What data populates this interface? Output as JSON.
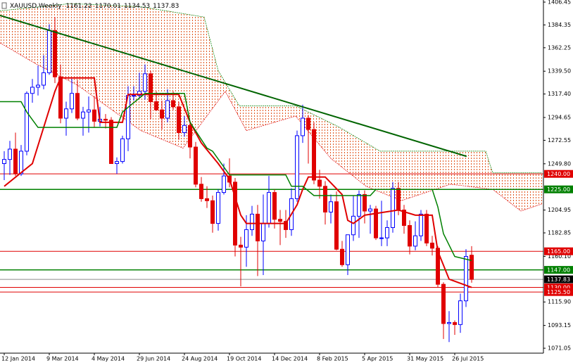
{
  "chart_data": {
    "type": "candlestick",
    "header": {
      "symbol": "XAUUSD,Weekly",
      "open": "1161.22",
      "high": "1170.01",
      "low": "1134.53",
      "close": "1137.83"
    },
    "categories": [
      "12 Jan 2014",
      null,
      null,
      null,
      null,
      null,
      null,
      null,
      "9 Mar 2014",
      null,
      null,
      null,
      null,
      null,
      null,
      null,
      "4 May 2014",
      null,
      null,
      null,
      null,
      null,
      null,
      null,
      "29 Jun 2014",
      null,
      null,
      null,
      null,
      null,
      null,
      null,
      "24 Aug 2014",
      null,
      null,
      null,
      null,
      null,
      null,
      null,
      "19 Oct 2014",
      null,
      null,
      null,
      null,
      null,
      null,
      null,
      "14 Dec 2014",
      null,
      null,
      null,
      null,
      null,
      null,
      null,
      "8 Feb 2015",
      null,
      null,
      null,
      null,
      null,
      null,
      null,
      "5 Apr 2015",
      null,
      null,
      null,
      null,
      null,
      null,
      null,
      "31 May 2015",
      null,
      null,
      null,
      null,
      null,
      null,
      null,
      "26 Jul 2015",
      null,
      null,
      null
    ],
    "open": [
      1250,
      1254,
      1264,
      1240,
      1262,
      1318,
      1324,
      1326,
      1338,
      1379,
      1334,
      1294,
      1303,
      1318,
      1294,
      1300,
      1302,
      1291,
      1293,
      1292,
      1250,
      1252,
      1274,
      1316,
      1316,
      1320,
      1337,
      1310,
      1302,
      1294,
      1311,
      1305,
      1280,
      1287,
      1266,
      1230,
      1216,
      1214,
      1192,
      1222,
      1238,
      1232,
      1171,
      1169,
      1186,
      1201,
      1175,
      1192,
      1222,
      1196,
      1194,
      1186,
      1216,
      1277,
      1294,
      1283,
      1234,
      1228,
      1203,
      1213,
      1167,
      1152,
      1181,
      1199,
      1220,
      1204,
      1206,
      1178,
      1178,
      1188,
      1226,
      1205,
      1190,
      1170,
      1180,
      1201,
      1173,
      1168,
      1133,
      1095,
      1096,
      1094,
      1117,
      1161.22
    ],
    "high": [
      1262,
      1272,
      1280,
      1268,
      1320,
      1332,
      1345,
      1355,
      1385,
      1392,
      1346,
      1310,
      1332,
      1331,
      1305,
      1315,
      1315,
      1305,
      1298,
      1295,
      1256,
      1277,
      1325,
      1325,
      1338,
      1346,
      1340,
      1320,
      1311,
      1322,
      1320,
      1310,
      1296,
      1290,
      1271,
      1237,
      1228,
      1219,
      1225,
      1250,
      1255,
      1236,
      1179,
      1200,
      1209,
      1210,
      1220,
      1238,
      1225,
      1205,
      1205,
      1226,
      1282,
      1307,
      1297,
      1290,
      1244,
      1233,
      1220,
      1223,
      1175,
      1178,
      1219,
      1224,
      1224,
      1210,
      1209,
      1214,
      1195,
      1232,
      1232,
      1210,
      1195,
      1194,
      1205,
      1205,
      1180,
      1170,
      1135,
      1107,
      1098,
      1124,
      1167,
      1170.01
    ],
    "low": [
      1234,
      1239,
      1238,
      1238,
      1258,
      1309,
      1316,
      1322,
      1336,
      1328,
      1289,
      1277,
      1299,
      1292,
      1277,
      1280,
      1285,
      1286,
      1284,
      1250,
      1240,
      1250,
      1262,
      1311,
      1314,
      1312,
      1293,
      1301,
      1283,
      1290,
      1302,
      1273,
      1276,
      1255,
      1227,
      1213,
      1207,
      1183,
      1185,
      1220,
      1227,
      1160,
      1131,
      1150,
      1180,
      1141,
      1142,
      1188,
      1187,
      1171,
      1178,
      1180,
      1213,
      1270,
      1250,
      1230,
      1216,
      1191,
      1192,
      1166,
      1150,
      1142,
      1175,
      1178,
      1192,
      1182,
      1176,
      1170,
      1170,
      1183,
      1200,
      1182,
      1162,
      1166,
      1175,
      1170,
      1161,
      1130,
      1080,
      1077,
      1084,
      1086,
      1111,
      1134.53
    ],
    "close": [
      1254,
      1264,
      1240,
      1262,
      1318,
      1324,
      1326,
      1338,
      1379,
      1334,
      1294,
      1303,
      1318,
      1294,
      1300,
      1302,
      1291,
      1293,
      1292,
      1250,
      1252,
      1274,
      1316,
      1316,
      1320,
      1337,
      1310,
      1302,
      1294,
      1311,
      1305,
      1280,
      1287,
      1266,
      1230,
      1216,
      1214,
      1192,
      1222,
      1238,
      1232,
      1171,
      1169,
      1186,
      1201,
      1175,
      1192,
      1222,
      1196,
      1194,
      1186,
      1216,
      1277,
      1294,
      1283,
      1234,
      1228,
      1203,
      1213,
      1167,
      1152,
      1181,
      1199,
      1220,
      1204,
      1206,
      1178,
      1178,
      1188,
      1226,
      1205,
      1190,
      1170,
      1180,
      1201,
      1173,
      1168,
      1133,
      1095,
      1096,
      1094,
      1117,
      1160,
      1137.83
    ],
    "up_color": "#0000ff",
    "down_color": "#e00000",
    "xlim": [
      -0.75,
      95.75
    ],
    "ylim": [
      1066.3,
      1408.5
    ],
    "yticks": [
      1406.45,
      1384.35,
      1362.25,
      {
        "value": 1339.5,
        "label": "1339.50"
      },
      {
        "value": 1317.4,
        "label": "1317.40"
      },
      1294.65,
      1272.55,
      {
        "value": 1249.8,
        "label": "1249.80"
      },
      1204.95,
      1182.85,
      {
        "value": 1160.1,
        "label": "1160.10"
      },
      {
        "value": 1115.9,
        "label": "1115.90"
      },
      1093.15,
      1071.05
    ],
    "cloud": {
      "color": "#e0541c",
      "upper": {
        "color": "#008000",
        "x": [
          -0.75,
          11.75,
          24.25,
          35.5,
          38,
          41.75,
          51.75,
          59.25,
          66.75,
          85.5,
          86.75,
          95.5
        ],
        "values": [
          1398,
          1405,
          1402,
          1392,
          1340,
          1306,
          1306,
          1286,
          1262,
          1262,
          1241,
          1241
        ]
      },
      "lower": {
        "color": "#e00000",
        "x": [
          -0.75,
          5.5,
          13,
          24.25,
          31.75,
          39.25,
          43,
          51.75,
          58,
          64.25,
          70.5,
          79.25,
          86.75,
          91.75,
          95.5
        ],
        "values": [
          1367,
          1347,
          1326,
          1282,
          1265,
          1320,
          1282,
          1296,
          1255,
          1228,
          1214,
          1230,
          1225,
          1204,
          1211
        ]
      }
    },
    "lines": [
      {
        "color": "#e00000",
        "width": 2,
        "x": [
          0,
          5,
          9,
          10,
          16,
          17,
          21,
          22,
          31,
          33,
          35,
          38,
          40,
          42,
          43,
          50,
          52,
          53,
          54,
          57,
          60,
          61,
          62,
          64,
          70,
          73,
          76,
          77,
          79,
          83
        ],
        "values": [
          1228,
          1250,
          1320,
          1333,
          1333,
          1290,
          1290,
          1317,
          1317,
          1290,
          1270,
          1250,
          1235,
          1200,
          1192,
          1192,
          1210,
          1225,
          1237,
          1237,
          1220,
          1195,
          1192,
          1200,
          1205,
          1200,
          1200,
          1165,
          1138,
          1130
        ]
      },
      {
        "color": "#008000",
        "width": 1.5,
        "x": [
          -0.75,
          3,
          4,
          6,
          20,
          21,
          25,
          32,
          33,
          36,
          37,
          40,
          50,
          51,
          53,
          55,
          65,
          66,
          76,
          77,
          78,
          80,
          83
        ],
        "values": [
          1310,
          1310,
          1300,
          1285,
          1285,
          1300,
          1318,
          1318,
          1290,
          1265,
          1262,
          1239,
          1239,
          1228,
          1228,
          1219,
          1219,
          1225,
          1225,
          1208,
          1182,
          1160,
          1156
        ]
      },
      {
        "color": "#006400",
        "width": 2,
        "x": [
          -0.75,
          82.1
        ],
        "values": [
          1393.5,
          1257
        ]
      }
    ],
    "levels": [
      {
        "value": 1240,
        "label": "1240.00",
        "color": "#e00000"
      },
      {
        "value": 1225,
        "label": "1225.00",
        "color": "#008000"
      },
      {
        "value": 1165,
        "label": "1165.00",
        "color": "#e00000"
      },
      {
        "value": 1147,
        "label": "1147.00",
        "color": "#008000"
      },
      {
        "value": 1137.83,
        "label": "1137.83",
        "color": "#000000"
      },
      {
        "value": 1130,
        "label": "1130.00",
        "color": "#e00000"
      },
      {
        "value": 1125.5,
        "label": "1125.50",
        "color": "#e00000"
      }
    ]
  }
}
